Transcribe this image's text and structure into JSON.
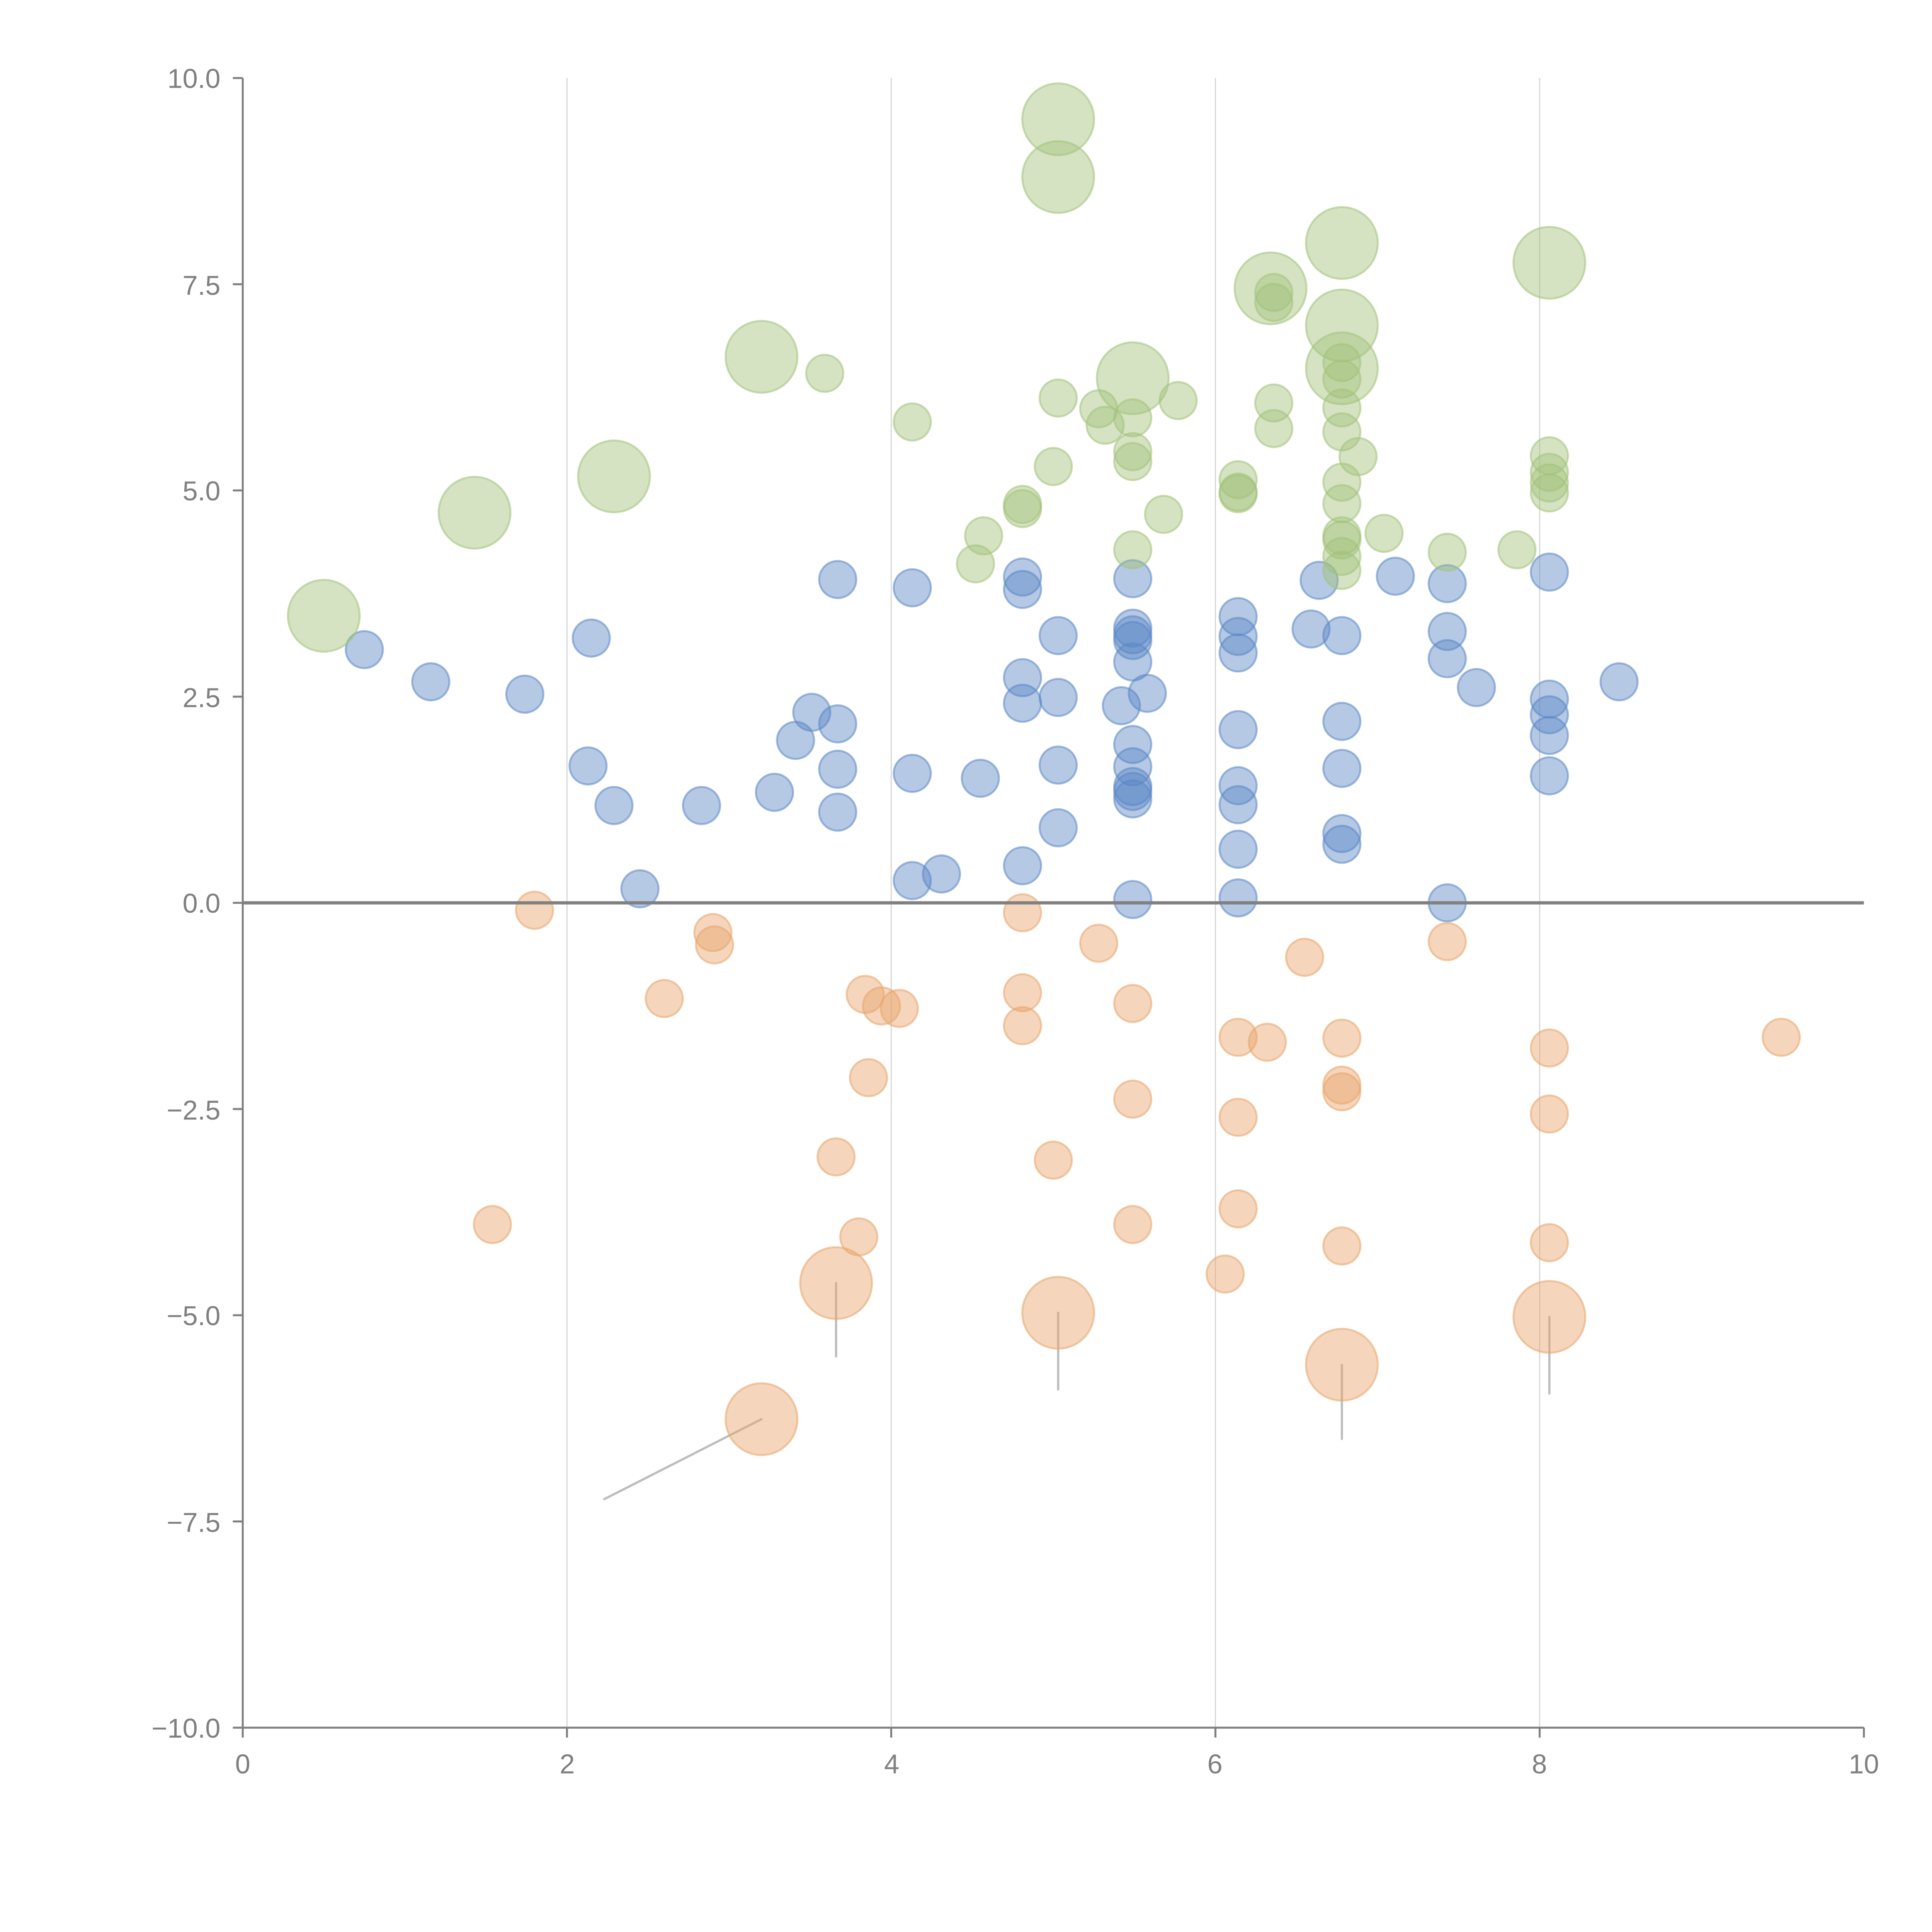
{
  "chart_data": {
    "type": "scatter",
    "title": "",
    "xlabel": "",
    "ylabel": "",
    "xlim": [
      0,
      10
    ],
    "ylim": [
      -10,
      10
    ],
    "x_ticks": [
      "0",
      "2",
      "4",
      "6",
      "8",
      "10"
    ],
    "x_tick_values": [
      0,
      2,
      4,
      6,
      8,
      10
    ],
    "y_ticks": [
      "10.0",
      "7.5",
      "5.0",
      "2.5",
      "0.0",
      "−2.5",
      "−5.0",
      "−7.5",
      "−10.0"
    ],
    "y_tick_values": [
      10,
      7.5,
      5,
      2.5,
      0,
      -2.5,
      -5,
      -7.5,
      -10
    ],
    "grid": "vertical",
    "zero_line": true,
    "legend": "none",
    "series": [
      {
        "name": "blue",
        "color": "#5b87c6",
        "size": "small",
        "points": [
          [
            0.75,
            3.07
          ],
          [
            1.16,
            2.68
          ],
          [
            1.74,
            2.53
          ],
          [
            2.15,
            3.21
          ],
          [
            2.13,
            1.66
          ],
          [
            2.29,
            1.18
          ],
          [
            2.45,
            0.17
          ],
          [
            2.83,
            1.18
          ],
          [
            3.28,
            1.34
          ],
          [
            3.41,
            1.97
          ],
          [
            3.51,
            2.31
          ],
          [
            3.67,
            2.17
          ],
          [
            3.67,
            1.62
          ],
          [
            3.67,
            1.1
          ],
          [
            3.67,
            3.92
          ],
          [
            4.13,
            3.82
          ],
          [
            4.13,
            1.57
          ],
          [
            4.13,
            0.27
          ],
          [
            4.31,
            0.35
          ],
          [
            4.55,
            1.51
          ],
          [
            4.81,
            3.95
          ],
          [
            4.81,
            3.8
          ],
          [
            4.81,
            2.73
          ],
          [
            4.81,
            2.42
          ],
          [
            4.81,
            0.45
          ],
          [
            5.03,
            3.24
          ],
          [
            5.03,
            2.49
          ],
          [
            5.03,
            1.67
          ],
          [
            5.03,
            0.91
          ],
          [
            5.49,
            3.93
          ],
          [
            5.49,
            3.33
          ],
          [
            5.49,
            3.25
          ],
          [
            5.49,
            3.18
          ],
          [
            5.49,
            2.92
          ],
          [
            5.58,
            2.54
          ],
          [
            5.42,
            2.39
          ],
          [
            5.49,
            1.92
          ],
          [
            5.49,
            1.65
          ],
          [
            5.49,
            1.41
          ],
          [
            5.49,
            1.35
          ],
          [
            5.49,
            1.26
          ],
          [
            5.49,
            0.04
          ],
          [
            6.14,
            3.47
          ],
          [
            6.14,
            3.23
          ],
          [
            6.14,
            3.03
          ],
          [
            6.14,
            2.1
          ],
          [
            6.14,
            1.42
          ],
          [
            6.14,
            1.19
          ],
          [
            6.14,
            0.65
          ],
          [
            6.14,
            0.06
          ],
          [
            6.59,
            3.32
          ],
          [
            6.64,
            3.91
          ],
          [
            6.78,
            3.24
          ],
          [
            6.78,
            2.2
          ],
          [
            6.78,
            1.63
          ],
          [
            6.78,
            0.84
          ],
          [
            6.78,
            0.71
          ],
          [
            7.11,
            3.96
          ],
          [
            7.43,
            3.87
          ],
          [
            7.43,
            3.29
          ],
          [
            7.43,
            2.96
          ],
          [
            7.43,
            0.0
          ],
          [
            7.61,
            2.61
          ],
          [
            8.06,
            4.01
          ],
          [
            8.06,
            2.47
          ],
          [
            8.06,
            2.28
          ],
          [
            8.06,
            2.03
          ],
          [
            8.06,
            1.54
          ],
          [
            8.49,
            2.68
          ]
        ]
      },
      {
        "name": "green",
        "color": "#a2c27a",
        "points": [
          [
            0.5,
            3.48,
            "large"
          ],
          [
            1.43,
            4.73,
            "large"
          ],
          [
            2.29,
            5.17,
            "large"
          ],
          [
            3.2,
            6.62,
            "large"
          ],
          [
            3.59,
            6.42,
            "small"
          ],
          [
            4.13,
            5.83,
            "small"
          ],
          [
            4.52,
            4.11,
            "small"
          ],
          [
            4.57,
            4.45,
            "small"
          ],
          [
            4.81,
            4.83,
            "small"
          ],
          [
            4.81,
            4.78,
            "small"
          ],
          [
            5.0,
            5.29,
            "small"
          ],
          [
            5.03,
            9.5,
            "large"
          ],
          [
            5.03,
            8.8,
            "large"
          ],
          [
            5.03,
            6.12,
            "small"
          ],
          [
            5.28,
            5.99,
            "small"
          ],
          [
            5.32,
            5.79,
            "small"
          ],
          [
            5.49,
            6.36,
            "large"
          ],
          [
            5.49,
            5.88,
            "small"
          ],
          [
            5.49,
            5.47,
            "small"
          ],
          [
            5.49,
            5.35,
            "small"
          ],
          [
            5.49,
            4.28,
            "small"
          ],
          [
            5.68,
            4.71,
            "small"
          ],
          [
            5.77,
            6.09,
            "small"
          ],
          [
            6.14,
            5.13,
            "small"
          ],
          [
            6.14,
            4.98,
            "small"
          ],
          [
            6.14,
            4.96,
            "small"
          ],
          [
            6.34,
            7.45,
            "large"
          ],
          [
            6.36,
            7.4,
            "small"
          ],
          [
            6.36,
            7.28,
            "small"
          ],
          [
            6.36,
            6.06,
            "small"
          ],
          [
            6.36,
            5.75,
            "small"
          ],
          [
            6.78,
            8.0,
            "large"
          ],
          [
            6.78,
            7.0,
            "large"
          ],
          [
            6.78,
            6.48,
            "large"
          ],
          [
            6.78,
            6.55,
            "small"
          ],
          [
            6.78,
            6.35,
            "small"
          ],
          [
            6.78,
            6.0,
            "small"
          ],
          [
            6.78,
            5.71,
            "small"
          ],
          [
            6.78,
            5.1,
            "small"
          ],
          [
            6.78,
            4.84,
            "small"
          ],
          [
            6.78,
            4.45,
            "small"
          ],
          [
            6.78,
            4.4,
            "small"
          ],
          [
            6.78,
            4.2,
            "small"
          ],
          [
            6.78,
            4.03,
            "small"
          ],
          [
            6.88,
            5.41,
            "small"
          ],
          [
            7.04,
            4.48,
            "small"
          ],
          [
            7.43,
            4.25,
            "small"
          ],
          [
            7.86,
            4.28,
            "small"
          ],
          [
            8.06,
            7.76,
            "large"
          ],
          [
            8.06,
            5.42,
            "small"
          ],
          [
            8.06,
            5.22,
            "small"
          ],
          [
            8.06,
            5.09,
            "small"
          ],
          [
            8.06,
            4.97,
            "small"
          ]
        ]
      },
      {
        "name": "orange",
        "color": "#e8a56b",
        "points": [
          [
            1.54,
            -3.9,
            "small"
          ],
          [
            1.8,
            -0.09,
            "small"
          ],
          [
            2.6,
            -1.16,
            "small"
          ],
          [
            2.9,
            -0.36,
            "small"
          ],
          [
            2.91,
            -0.51,
            "small"
          ],
          [
            3.2,
            -6.26,
            "large"
          ],
          [
            3.66,
            -3.08,
            "small"
          ],
          [
            3.66,
            -4.61,
            "large"
          ],
          [
            3.8,
            -4.05,
            "small"
          ],
          [
            3.84,
            -1.11,
            "small"
          ],
          [
            3.86,
            -2.12,
            "small"
          ],
          [
            3.94,
            -1.25,
            "small"
          ],
          [
            4.05,
            -1.28,
            "small"
          ],
          [
            4.81,
            -0.12,
            "small"
          ],
          [
            4.81,
            -1.09,
            "small"
          ],
          [
            4.81,
            -1.49,
            "small"
          ],
          [
            5.0,
            -3.12,
            "small"
          ],
          [
            5.03,
            -4.97,
            "large"
          ],
          [
            5.28,
            -0.49,
            "small"
          ],
          [
            5.49,
            -1.22,
            "small"
          ],
          [
            5.49,
            -2.38,
            "small"
          ],
          [
            5.49,
            -3.9,
            "small"
          ],
          [
            6.06,
            -4.5,
            "small"
          ],
          [
            6.14,
            -1.63,
            "small"
          ],
          [
            6.14,
            -2.6,
            "small"
          ],
          [
            6.14,
            -3.71,
            "small"
          ],
          [
            6.32,
            -1.69,
            "small"
          ],
          [
            6.55,
            -0.66,
            "small"
          ],
          [
            6.78,
            -1.64,
            "small"
          ],
          [
            6.78,
            -2.21,
            "small"
          ],
          [
            6.78,
            -2.29,
            "small"
          ],
          [
            6.78,
            -4.16,
            "small"
          ],
          [
            6.78,
            -5.6,
            "large"
          ],
          [
            7.43,
            -0.47,
            "small"
          ],
          [
            8.06,
            -1.76,
            "small"
          ],
          [
            8.06,
            -2.56,
            "small"
          ],
          [
            8.06,
            -4.12,
            "small"
          ],
          [
            8.06,
            -5.02,
            "large"
          ],
          [
            9.49,
            -1.63,
            "small"
          ]
        ]
      }
    ],
    "annotations": {
      "leader_lines": [
        [
          3.66,
          -4.61,
          3.66,
          -5.5
        ],
        [
          5.03,
          -4.97,
          5.03,
          -5.9
        ],
        [
          6.78,
          -5.6,
          6.78,
          -6.5
        ],
        [
          8.06,
          -5.02,
          8.06,
          -5.95
        ],
        [
          3.2,
          -6.26,
          2.23,
          -7.23
        ]
      ]
    }
  }
}
